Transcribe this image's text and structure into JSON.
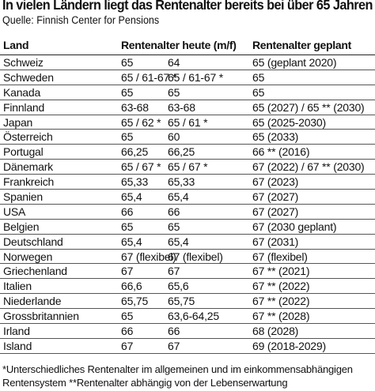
{
  "header": {
    "title": "In vielen Ländern liegt das Rentenalter bereits bei über 65 Jahren",
    "source": "Quelle: Finnish Center for Pensions"
  },
  "table": {
    "columns": [
      "Land",
      "Rentenalter heute (m/f)",
      "",
      "Rentenalter geplant"
    ],
    "rows": [
      [
        "Schweiz",
        "65",
        "64",
        "65 (geplant 2020)"
      ],
      [
        "Schweden",
        "65 / 61-67 *",
        "65 / 61-67 *",
        "65"
      ],
      [
        "Kanada",
        "65",
        "65",
        "65"
      ],
      [
        "Finnland",
        "63-68",
        "63-68",
        "65 (2027) / 65 ** (2030)"
      ],
      [
        "Japan",
        "65 / 62 *",
        "65 / 61 *",
        "65 (2025-2030)"
      ],
      [
        "Österreich",
        "65",
        "60",
        "65 (2033)"
      ],
      [
        "Portugal",
        "66,25",
        "66,25",
        "66 ** (2016)"
      ],
      [
        "Dänemark",
        "65 / 67 *",
        "65 / 67 *",
        "67 (2022) / 67 ** (2030)"
      ],
      [
        "Frankreich",
        "65,33",
        "65,33",
        "67 (2023)"
      ],
      [
        "Spanien",
        "65,4",
        "65,4",
        "67 (2027)"
      ],
      [
        "USA",
        "66",
        "66",
        "67 (2027)"
      ],
      [
        "Belgien",
        "65",
        "65",
        "67 (2030 geplant)"
      ],
      [
        "Deutschland",
        "65,4",
        "65,4",
        "67 (2031)"
      ],
      [
        "Norwegen",
        "67 (flexibel)",
        "67 (flexibel)",
        "67 (flexibel)"
      ],
      [
        "Griechenland",
        "67",
        "67",
        "67 ** (2021)"
      ],
      [
        "Italien",
        "66,6",
        "65,6",
        "67 ** (2022)"
      ],
      [
        "Niederlande",
        "65,75",
        "65,75",
        "67 ** (2022)"
      ],
      [
        "Grossbritannien",
        "65",
        "63,6-64,25",
        "67 ** (2028)"
      ],
      [
        "Irland",
        "66",
        "66",
        "68 (2028)"
      ],
      [
        "Island",
        "67",
        "67",
        "69 (2018-2029)"
      ]
    ]
  },
  "footnote": "*Unterschiedliches Rentenalter im allgemeinen und im einkommensabhängigen Rentensystem **Rentenalter abhängig von der Lebenserwartung"
}
